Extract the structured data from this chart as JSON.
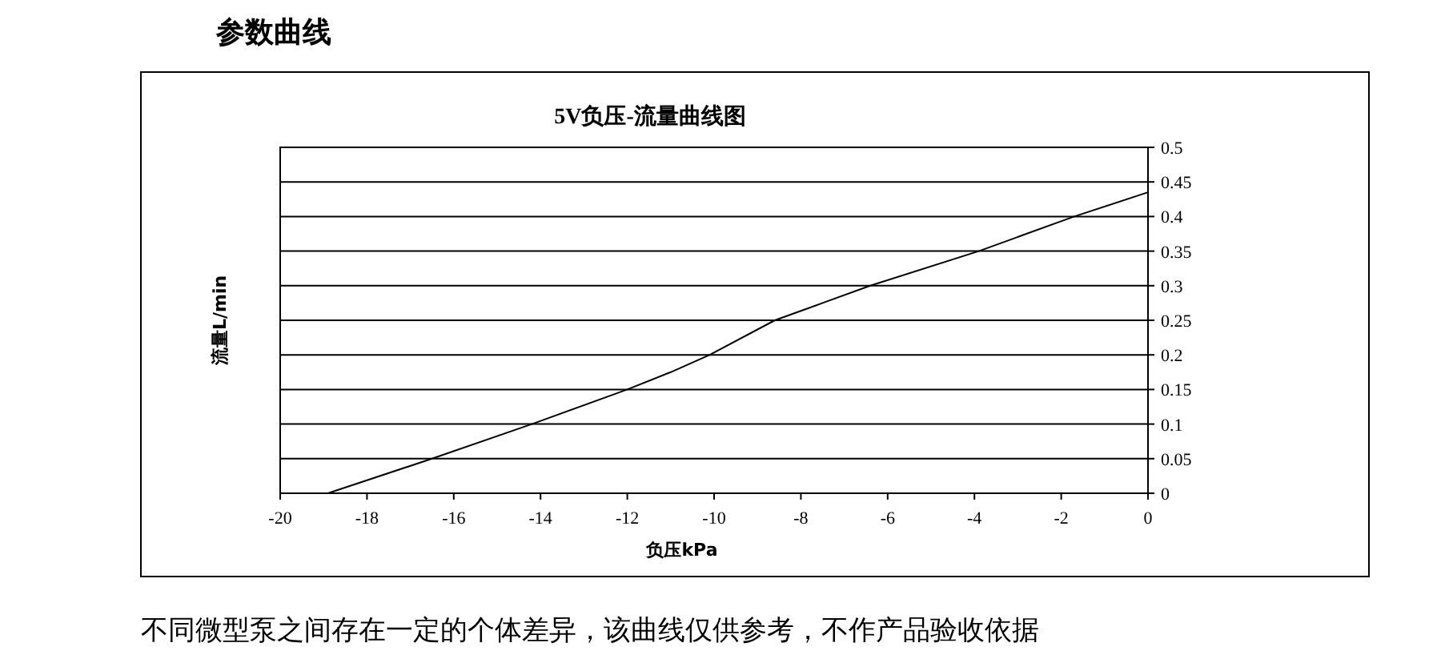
{
  "chart_data": {
    "type": "line",
    "title": "5V负压-流量曲线图",
    "xlabel": "负压kPa",
    "ylabel": "流量L/min",
    "annotations": [
      "参数曲线",
      "不同微型泵之间存在一定的个体差异，该曲线仅供参考，不作产品验收依据"
    ],
    "series": [
      {
        "color": "#000000",
        "x": [
          -18.9,
          -16.5,
          -14.2,
          -12,
          -11,
          -10.1,
          -8.6,
          -7.5,
          -6.4,
          -3.9,
          -1.7,
          0
        ],
        "values": [
          0,
          0.05,
          0.1,
          0.15,
          0.175,
          0.2,
          0.25,
          0.275,
          0.3,
          0.35,
          0.4,
          0.435
        ]
      }
    ],
    "xlim": [
      -20,
      0
    ],
    "xticks": [
      -20,
      -18,
      -16,
      -14,
      -12,
      -10,
      -8,
      -6,
      -4,
      -2,
      0
    ],
    "ylim": [
      0,
      0.5
    ],
    "yticks": [
      0,
      0.05,
      0.1,
      0.15,
      0.2,
      0.25,
      0.3,
      0.35,
      0.4,
      0.45,
      0.5
    ],
    "grid": "y"
  }
}
